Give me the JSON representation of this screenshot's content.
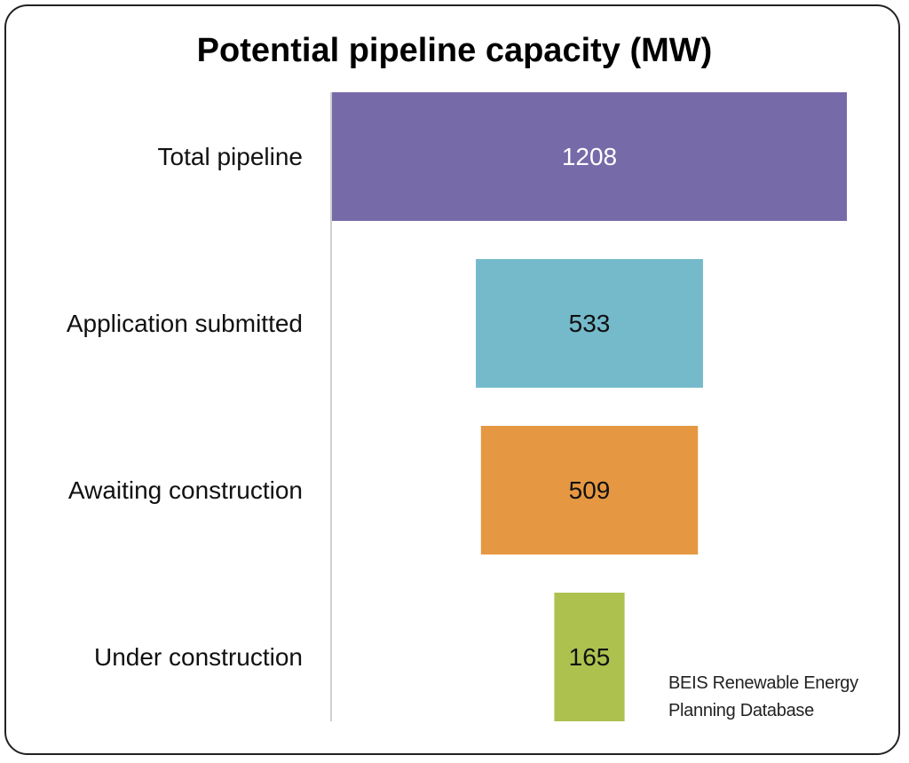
{
  "chart_data": {
    "type": "bar",
    "orientation": "horizontal",
    "style": "funnel",
    "title": "Potential pipeline capacity (MW)",
    "categories": [
      "Total pipeline",
      "Application submitted",
      "Awaiting construction",
      "Under construction"
    ],
    "values": [
      1208,
      533,
      509,
      165
    ],
    "data_labels": [
      "1208",
      "533",
      "509",
      "165"
    ],
    "colors": [
      "#766aa8",
      "#74bacb",
      "#e59841",
      "#adc14f"
    ],
    "label_colors": [
      "#ffffff",
      "#111111",
      "#111111",
      "#111111"
    ],
    "xlim": [
      0,
      1208
    ],
    "grid": false,
    "legend": "none"
  },
  "source": {
    "line1": "BEIS Renewable Energy",
    "line2": "Planning Database"
  }
}
